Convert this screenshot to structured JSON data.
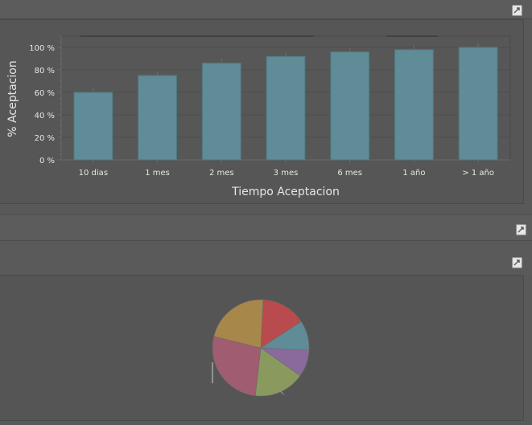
{
  "icons": {
    "export": "export-icon"
  },
  "bar_chart": {
    "xlabel": "Tiempo Aceptacion",
    "ylabel": "% Aceptacion",
    "yticks": [
      "0 %",
      "20 %",
      "40 %",
      "60 %",
      "80 %",
      "100 %"
    ],
    "bar_color": "#5f8c96"
  },
  "chart_data": [
    {
      "type": "bar",
      "categories": [
        "10 dias",
        "1 mes",
        "2 mes",
        "3 mes",
        "6 mes",
        "1 año",
        "> 1 año"
      ],
      "values": [
        60,
        75,
        86,
        92,
        96,
        98,
        100
      ],
      "xlabel": "Tiempo Aceptacion",
      "ylabel": "% Aceptacion",
      "ylim": [
        0,
        110
      ],
      "grid": true
    },
    {
      "type": "pie",
      "values": [
        15,
        10,
        9,
        17,
        27,
        22
      ],
      "colors": [
        "#b94a4e",
        "#5f8c96",
        "#8a6a9c",
        "#8a9a5e",
        "#a05c70",
        "#a8874a"
      ]
    }
  ]
}
